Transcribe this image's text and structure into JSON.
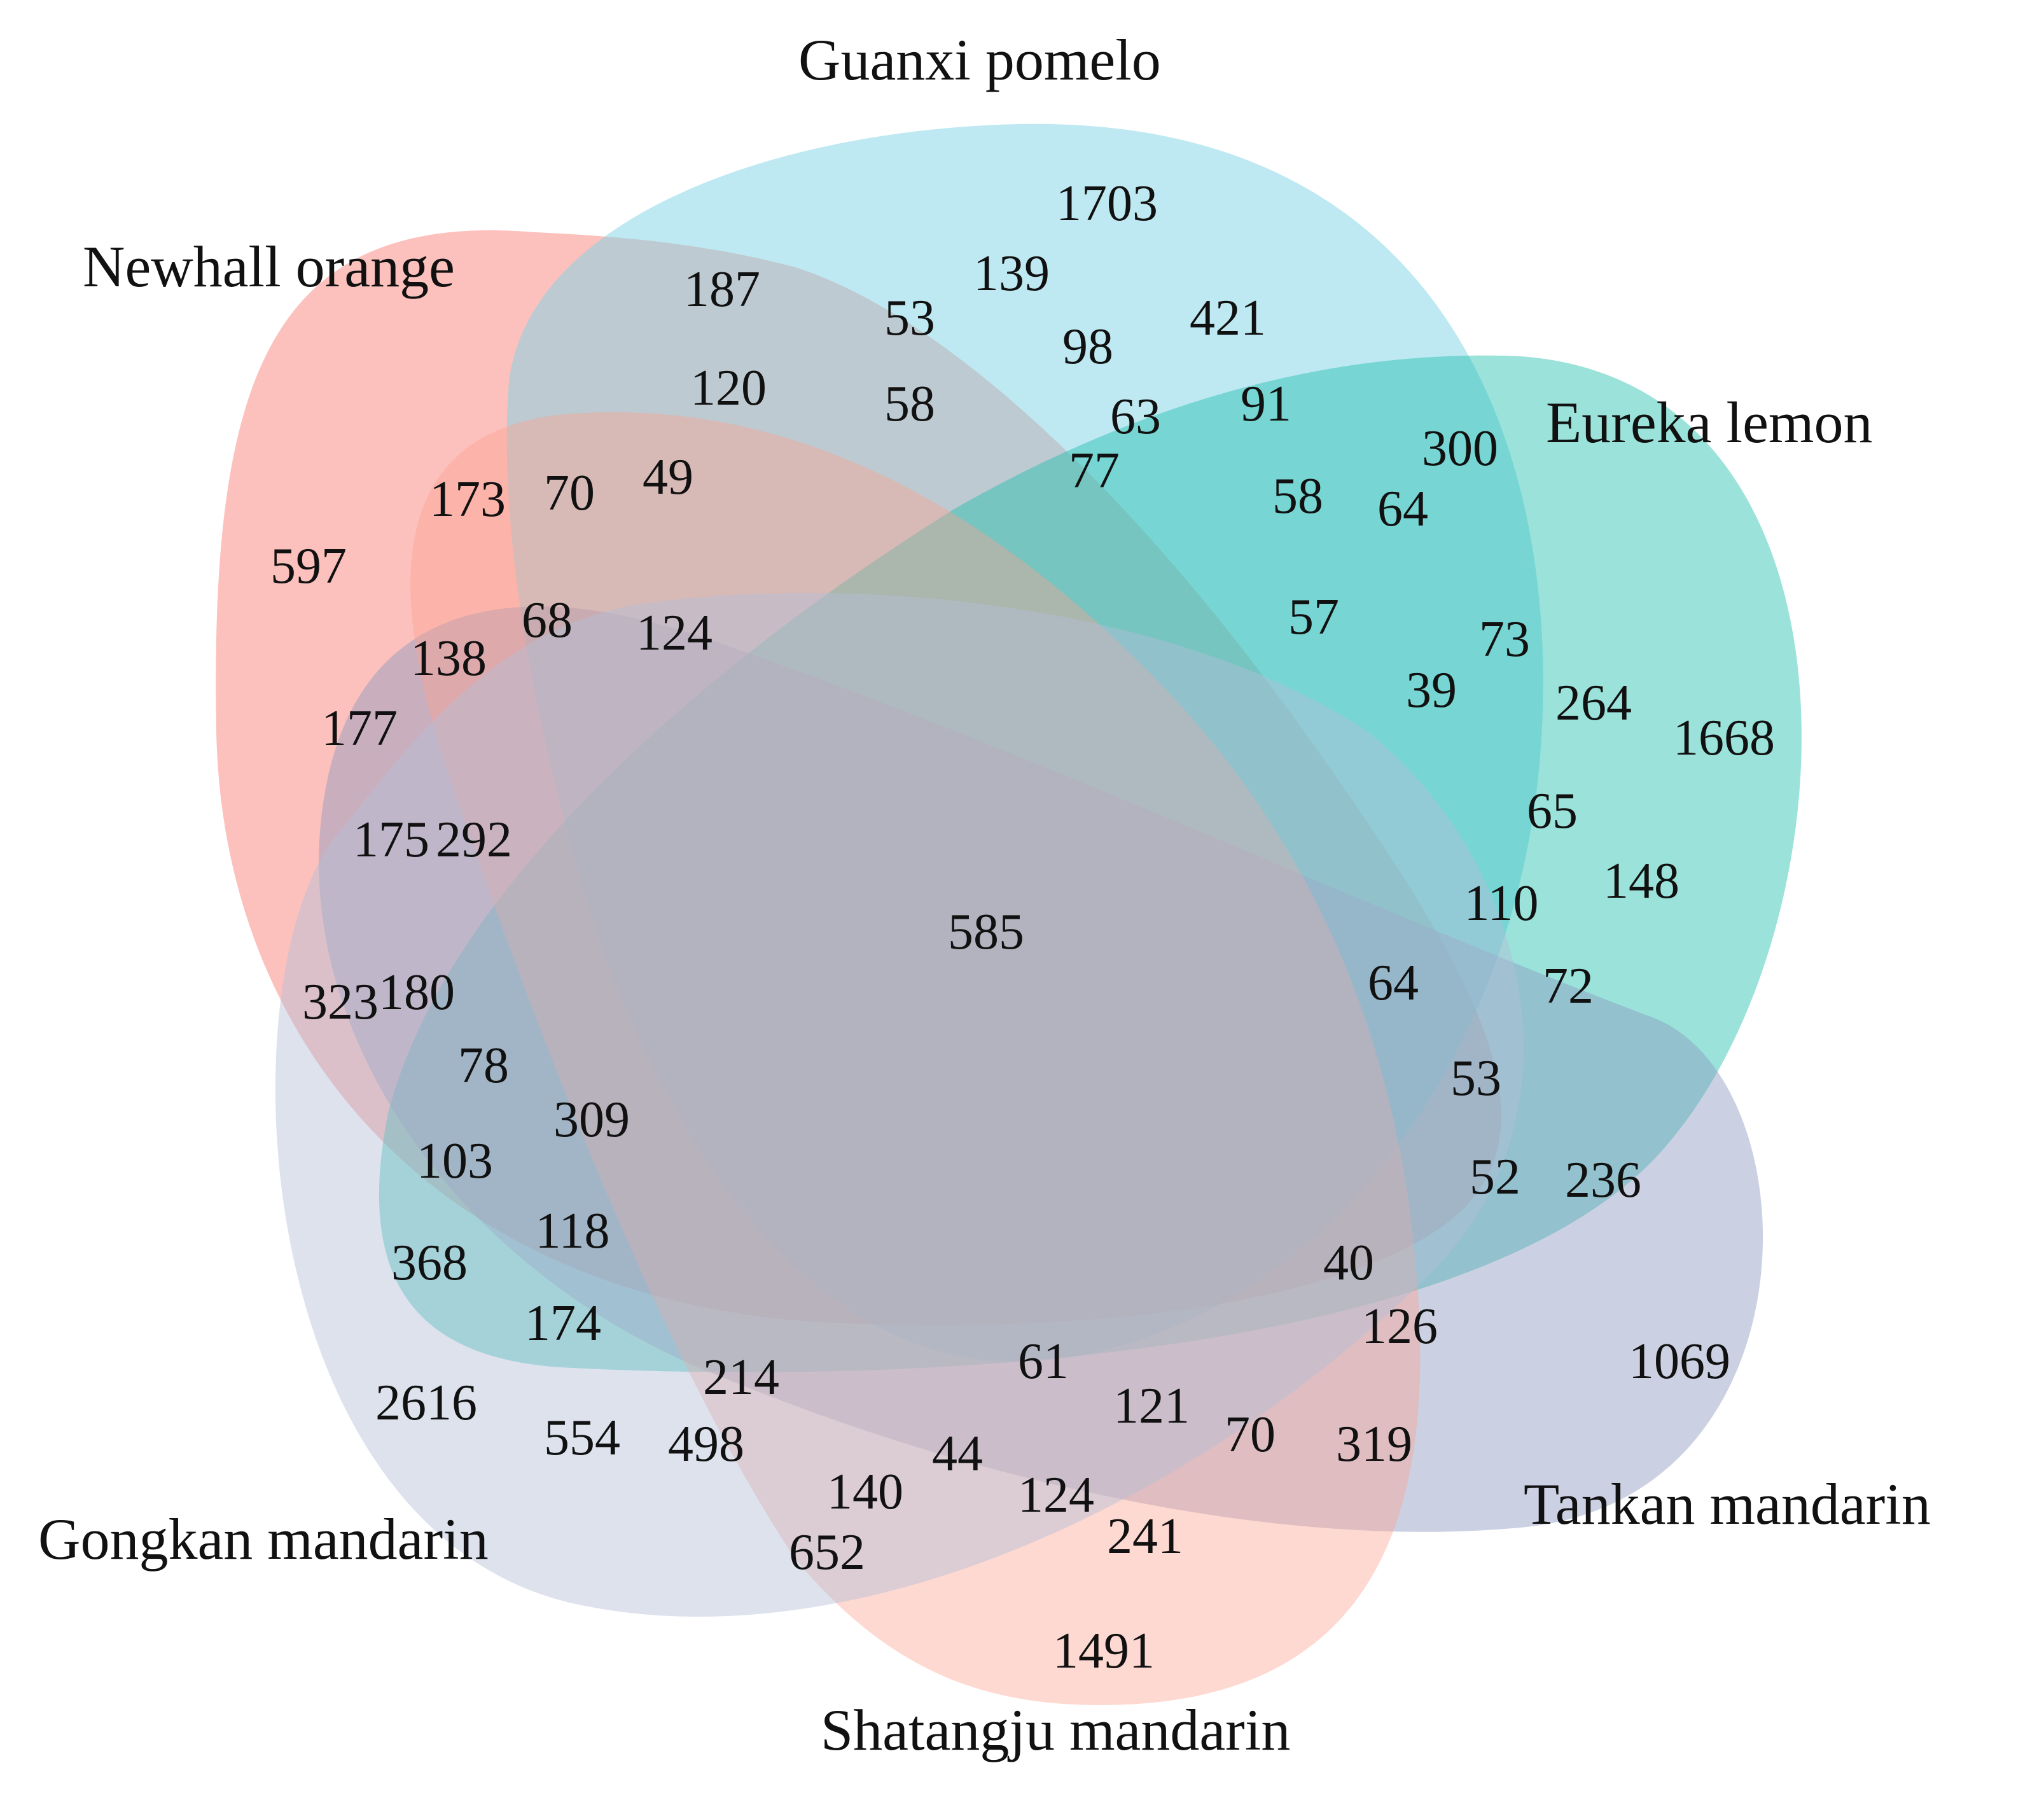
{
  "sets": [
    {
      "name": "Newhall orange",
      "color": "#F8766D"
    },
    {
      "name": "Guanxi pomelo",
      "color": "#7FD3E6"
    },
    {
      "name": "Eureka lemon",
      "color": "#1FBFAE"
    },
    {
      "name": "Tankan mandarin",
      "color": "#8C99BE"
    },
    {
      "name": "Shatangju mandarin",
      "color": "#FCA08E"
    },
    {
      "name": "Gongkan mandarin",
      "color": "#B4BED6"
    }
  ],
  "counts": [
    "1703",
    "187",
    "139",
    "53",
    "421",
    "98",
    "120",
    "58",
    "63",
    "91",
    "300",
    "173",
    "70",
    "49",
    "77",
    "58",
    "64",
    "597",
    "68",
    "124",
    "57",
    "73",
    "138",
    "39",
    "264",
    "177",
    "1668",
    "65",
    "175",
    "292",
    "585",
    "110",
    "148",
    "323",
    "180",
    "64",
    "72",
    "78",
    "53",
    "309",
    "103",
    "52",
    "236",
    "118",
    "368",
    "40",
    "174",
    "126",
    "1069",
    "214",
    "61",
    "2616",
    "121",
    "554",
    "498",
    "70",
    "319",
    "44",
    "140",
    "124",
    "652",
    "241",
    "1491"
  ]
}
